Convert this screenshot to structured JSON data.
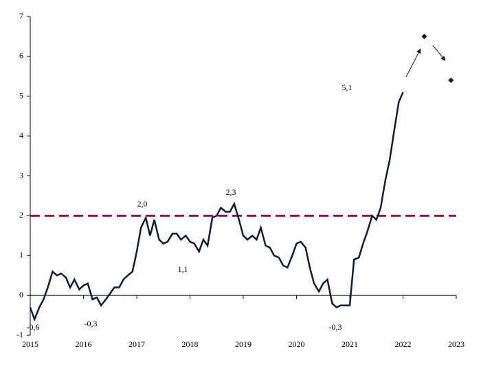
{
  "chart_data": {
    "type": "line",
    "x": [
      2015,
      2015.08,
      2015.17,
      2015.25,
      2015.33,
      2015.42,
      2015.5,
      2015.58,
      2015.67,
      2015.75,
      2015.83,
      2015.92,
      2016,
      2016.08,
      2016.17,
      2016.25,
      2016.33,
      2016.42,
      2016.5,
      2016.58,
      2016.67,
      2016.75,
      2016.83,
      2016.92,
      2017,
      2017.08,
      2017.17,
      2017.25,
      2017.33,
      2017.42,
      2017.5,
      2017.58,
      2017.67,
      2017.75,
      2017.83,
      2017.92,
      2018,
      2018.08,
      2018.17,
      2018.25,
      2018.33,
      2018.42,
      2018.5,
      2018.58,
      2018.67,
      2018.75,
      2018.83,
      2018.92,
      2019,
      2019.08,
      2019.17,
      2019.25,
      2019.33,
      2019.42,
      2019.5,
      2019.58,
      2019.67,
      2019.75,
      2019.83,
      2019.92,
      2020,
      2020.08,
      2020.17,
      2020.25,
      2020.33,
      2020.42,
      2020.5,
      2020.58,
      2020.67,
      2020.75,
      2020.83,
      2020.92,
      2021,
      2021.08,
      2021.17,
      2021.25,
      2021.33,
      2021.42,
      2021.5,
      2021.58,
      2021.67,
      2021.75,
      2021.83,
      2021.92,
      2022
    ],
    "series": [
      {
        "color": "#0d1a3a",
        "values": [
          -0.3,
          -0.6,
          -0.3,
          -0.1,
          0.2,
          0.6,
          0.5,
          0.55,
          0.45,
          0.2,
          0.4,
          0.15,
          0.25,
          0.3,
          -0.1,
          -0.05,
          -0.25,
          -0.1,
          0.05,
          0.2,
          0.2,
          0.4,
          0.5,
          0.6,
          1.1,
          1.7,
          1.95,
          1.5,
          1.9,
          1.4,
          1.3,
          1.35,
          1.55,
          1.55,
          1.4,
          1.5,
          1.35,
          1.3,
          1.1,
          1.4,
          1.25,
          1.95,
          2.0,
          2.2,
          2.1,
          2.1,
          2.3,
          1.9,
          1.5,
          1.4,
          1.5,
          1.4,
          1.7,
          1.25,
          1.2,
          1.0,
          0.95,
          0.75,
          0.7,
          1.0,
          1.3,
          1.35,
          1.2,
          0.7,
          0.3,
          0.1,
          0.3,
          0.4,
          -0.2,
          -0.3,
          -0.25,
          -0.25,
          -0.25,
          0.9,
          0.95,
          1.3,
          1.6,
          2.0,
          1.9,
          2.2,
          2.9,
          3.4,
          4.1,
          4.85,
          5.1
        ]
      },
      {
        "color": "#0d1a3a",
        "x": [
          2022.4,
          2022.9
        ],
        "values": [
          6.5,
          5.4
        ]
      }
    ],
    "reference_line": {
      "value": 2,
      "color": "#8b1a4a"
    },
    "annotations": [
      "-0,6",
      "-0,3",
      "2,0",
      "1,1",
      "2,3",
      "-0,3",
      "5,1"
    ],
    "xlim": [
      2015,
      2023
    ],
    "xticks": [
      2015,
      2016,
      2017,
      2018,
      2019,
      2020,
      2021,
      2022,
      2023
    ],
    "ylim": [
      -1,
      7
    ],
    "yticks": [
      -1,
      0,
      1,
      2,
      3,
      4,
      5,
      6,
      7
    ]
  }
}
